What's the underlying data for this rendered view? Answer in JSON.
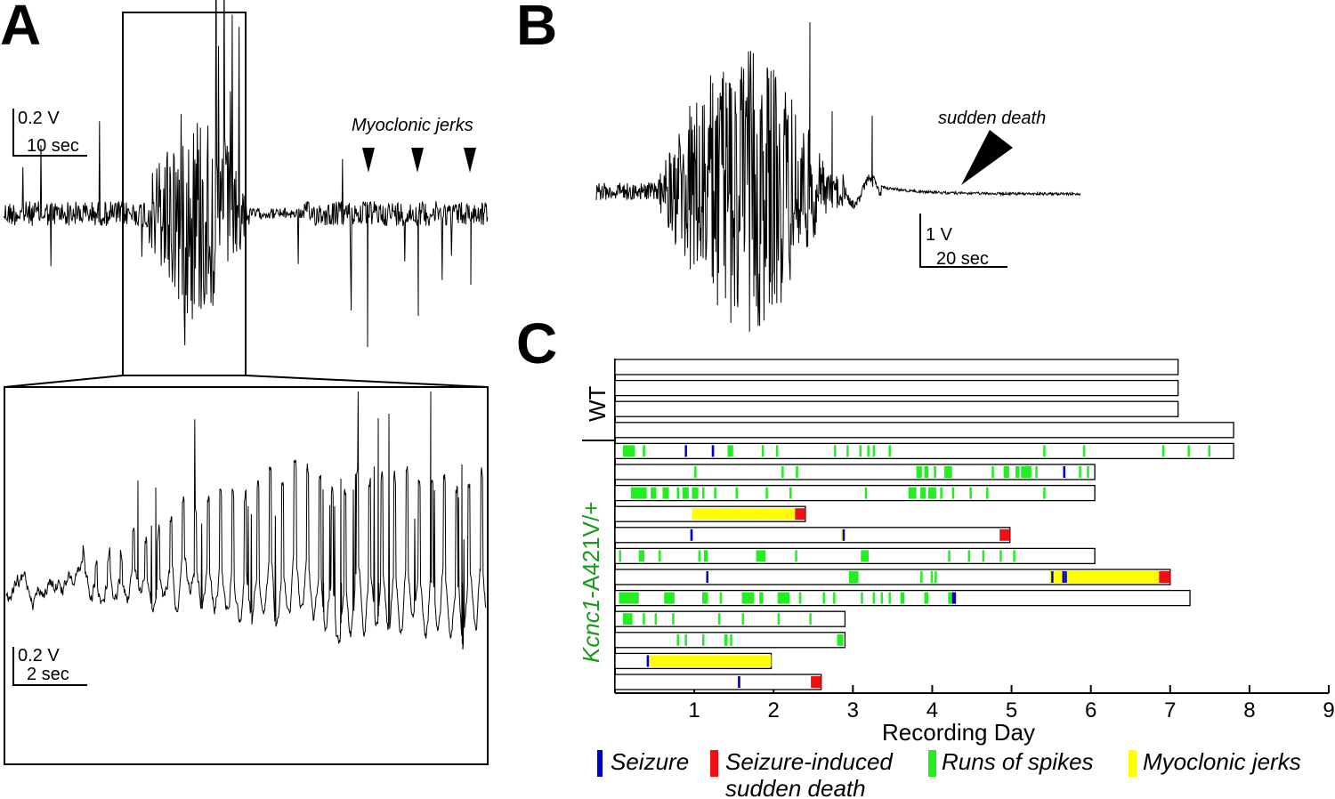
{
  "panels": {
    "a": {
      "letter": "A",
      "scale_top": {
        "voltage": "0.2 V",
        "time": "10 sec"
      },
      "scale_bottom": {
        "voltage": "0.2 V",
        "time": "2 sec"
      },
      "annotation": "Myoclonic jerks"
    },
    "b": {
      "letter": "B",
      "annotation": "sudden death",
      "scale": {
        "voltage": "1 V",
        "time": "20 sec"
      }
    },
    "c": {
      "letter": "C"
    }
  },
  "colors": {
    "seizure": "#0000cc",
    "sudden_death": "#ee1111",
    "spikes": "#22ee22",
    "jerks": "#ffff00",
    "genotype_label": "#1a9a1a"
  },
  "chart_data": {
    "type": "timeline",
    "xlabel": "Recording Day",
    "xlim": [
      0,
      9
    ],
    "xticks": [
      "1",
      "2",
      "3",
      "4",
      "5",
      "6",
      "7",
      "8",
      "9"
    ],
    "groups": [
      {
        "label": "WT",
        "italic_part": "",
        "rows": [
          0,
          1,
          2,
          3
        ]
      },
      {
        "label": "-A421V/+",
        "italic_part": "Kcnc1",
        "rows": [
          4,
          5,
          6,
          7,
          8,
          9,
          10,
          11,
          12,
          13,
          14,
          15
        ]
      }
    ],
    "legend": [
      {
        "key": "seizure",
        "label": "Seizure"
      },
      {
        "key": "sudden_death",
        "label": "Seizure-induced sudden death"
      },
      {
        "key": "spikes",
        "label": "Runs of spikes"
      },
      {
        "key": "jerks",
        "label": "Myoclonic jerks"
      }
    ],
    "rows": [
      {
        "duration": 7.1,
        "events": []
      },
      {
        "duration": 7.1,
        "events": []
      },
      {
        "duration": 7.1,
        "events": []
      },
      {
        "duration": 7.8,
        "events": []
      },
      {
        "duration": 7.8,
        "events": [
          {
            "type": "spikes",
            "start": 0.1,
            "end": 0.25
          },
          {
            "type": "spikes",
            "start": 0.35,
            "end": 0.38
          },
          {
            "type": "seizure",
            "start": 0.88,
            "end": 0.9
          },
          {
            "type": "seizure",
            "start": 1.22,
            "end": 1.25
          },
          {
            "type": "spikes",
            "start": 1.42,
            "end": 1.49
          },
          {
            "type": "spikes",
            "start": 1.85,
            "end": 1.87
          },
          {
            "type": "spikes",
            "start": 2.03,
            "end": 2.05
          },
          {
            "type": "spikes",
            "start": 2.76,
            "end": 2.78
          },
          {
            "type": "spikes",
            "start": 2.92,
            "end": 2.94
          },
          {
            "type": "spikes",
            "start": 3.08,
            "end": 3.1
          },
          {
            "type": "spikes",
            "start": 3.18,
            "end": 3.2
          },
          {
            "type": "spikes",
            "start": 3.25,
            "end": 3.27
          },
          {
            "type": "spikes",
            "start": 3.45,
            "end": 3.47
          },
          {
            "type": "spikes",
            "start": 5.4,
            "end": 5.42
          },
          {
            "type": "spikes",
            "start": 5.9,
            "end": 5.92
          },
          {
            "type": "spikes",
            "start": 6.9,
            "end": 6.92
          },
          {
            "type": "spikes",
            "start": 7.22,
            "end": 7.24
          },
          {
            "type": "spikes",
            "start": 7.48,
            "end": 7.5
          }
        ]
      },
      {
        "duration": 6.05,
        "events": [
          {
            "type": "spikes",
            "start": 1.0,
            "end": 1.02
          },
          {
            "type": "spikes",
            "start": 2.1,
            "end": 2.12
          },
          {
            "type": "spikes",
            "start": 2.28,
            "end": 2.31
          },
          {
            "type": "spikes",
            "start": 3.8,
            "end": 3.87
          },
          {
            "type": "spikes",
            "start": 3.9,
            "end": 3.95
          },
          {
            "type": "spikes",
            "start": 4.02,
            "end": 4.05
          },
          {
            "type": "spikes",
            "start": 4.15,
            "end": 4.25
          },
          {
            "type": "spikes",
            "start": 4.75,
            "end": 4.77
          },
          {
            "type": "spikes",
            "start": 4.9,
            "end": 4.97
          },
          {
            "type": "spikes",
            "start": 5.05,
            "end": 5.1
          },
          {
            "type": "spikes",
            "start": 5.12,
            "end": 5.25
          },
          {
            "type": "spikes",
            "start": 5.3,
            "end": 5.32
          },
          {
            "type": "seizure",
            "start": 5.65,
            "end": 5.67
          },
          {
            "type": "spikes",
            "start": 5.85,
            "end": 5.87
          },
          {
            "type": "spikes",
            "start": 5.95,
            "end": 5.97
          }
        ]
      },
      {
        "duration": 6.05,
        "events": [
          {
            "type": "spikes",
            "start": 0.2,
            "end": 0.4
          },
          {
            "type": "spikes",
            "start": 0.45,
            "end": 0.52
          },
          {
            "type": "spikes",
            "start": 0.6,
            "end": 0.68
          },
          {
            "type": "spikes",
            "start": 0.78,
            "end": 0.8
          },
          {
            "type": "spikes",
            "start": 0.85,
            "end": 0.93
          },
          {
            "type": "spikes",
            "start": 0.97,
            "end": 1.05
          },
          {
            "type": "spikes",
            "start": 1.1,
            "end": 1.12
          },
          {
            "type": "spikes",
            "start": 1.25,
            "end": 1.27
          },
          {
            "type": "spikes",
            "start": 1.52,
            "end": 1.54
          },
          {
            "type": "spikes",
            "start": 1.9,
            "end": 1.92
          },
          {
            "type": "spikes",
            "start": 2.2,
            "end": 2.22
          },
          {
            "type": "spikes",
            "start": 3.15,
            "end": 3.17
          },
          {
            "type": "spikes",
            "start": 3.7,
            "end": 3.8
          },
          {
            "type": "spikes",
            "start": 3.85,
            "end": 3.92
          },
          {
            "type": "spikes",
            "start": 3.95,
            "end": 4.05
          },
          {
            "type": "spikes",
            "start": 4.1,
            "end": 4.12
          },
          {
            "type": "spikes",
            "start": 4.25,
            "end": 4.27
          },
          {
            "type": "spikes",
            "start": 4.47,
            "end": 4.49
          },
          {
            "type": "spikes",
            "start": 4.68,
            "end": 4.7
          },
          {
            "type": "spikes",
            "start": 5.4,
            "end": 5.42
          }
        ]
      },
      {
        "duration": 2.4,
        "events": [
          {
            "type": "jerks",
            "start": 0.97,
            "end": 2.27
          },
          {
            "type": "sudden_death",
            "start": 2.27,
            "end": 2.4
          }
        ]
      },
      {
        "duration": 4.98,
        "events": [
          {
            "type": "seizure",
            "start": 0.95,
            "end": 0.98
          },
          {
            "type": "jerks",
            "start": 2.85,
            "end": 2.87
          },
          {
            "type": "seizure",
            "start": 2.87,
            "end": 2.89
          },
          {
            "type": "sudden_death",
            "start": 4.85,
            "end": 4.98
          }
        ]
      },
      {
        "duration": 6.05,
        "events": [
          {
            "type": "spikes",
            "start": 0.05,
            "end": 0.07
          },
          {
            "type": "spikes",
            "start": 0.3,
            "end": 0.37
          },
          {
            "type": "spikes",
            "start": 0.55,
            "end": 0.57
          },
          {
            "type": "spikes",
            "start": 1.05,
            "end": 1.07
          },
          {
            "type": "spikes",
            "start": 1.12,
            "end": 1.17
          },
          {
            "type": "spikes",
            "start": 1.78,
            "end": 1.9
          },
          {
            "type": "spikes",
            "start": 2.27,
            "end": 2.29
          },
          {
            "type": "spikes",
            "start": 3.1,
            "end": 3.2
          },
          {
            "type": "spikes",
            "start": 4.2,
            "end": 4.22
          },
          {
            "type": "spikes",
            "start": 4.45,
            "end": 4.47
          },
          {
            "type": "spikes",
            "start": 4.63,
            "end": 4.65
          },
          {
            "type": "spikes",
            "start": 4.85,
            "end": 4.87
          },
          {
            "type": "spikes",
            "start": 5.02,
            "end": 5.04
          }
        ]
      },
      {
        "duration": 7.0,
        "events": [
          {
            "type": "seizure",
            "start": 1.15,
            "end": 1.17
          },
          {
            "type": "spikes",
            "start": 2.95,
            "end": 3.07
          },
          {
            "type": "spikes",
            "start": 3.85,
            "end": 3.87
          },
          {
            "type": "spikes",
            "start": 3.98,
            "end": 4.0
          },
          {
            "type": "spikes",
            "start": 4.03,
            "end": 4.05
          },
          {
            "type": "jerks",
            "start": 5.48,
            "end": 6.86
          },
          {
            "type": "seizure",
            "start": 5.5,
            "end": 5.52
          },
          {
            "type": "seizure",
            "start": 5.64,
            "end": 5.66
          },
          {
            "type": "seizure",
            "start": 5.67,
            "end": 5.69
          },
          {
            "type": "sudden_death",
            "start": 6.86,
            "end": 7.0
          }
        ]
      },
      {
        "duration": 7.25,
        "events": [
          {
            "type": "spikes",
            "start": 0.05,
            "end": 0.3
          },
          {
            "type": "spikes",
            "start": 0.62,
            "end": 0.75
          },
          {
            "type": "spikes",
            "start": 1.1,
            "end": 1.17
          },
          {
            "type": "spikes",
            "start": 1.32,
            "end": 1.34
          },
          {
            "type": "spikes",
            "start": 1.6,
            "end": 1.75
          },
          {
            "type": "spikes",
            "start": 1.82,
            "end": 1.87
          },
          {
            "type": "spikes",
            "start": 2.05,
            "end": 2.2
          },
          {
            "type": "spikes",
            "start": 2.32,
            "end": 2.35
          },
          {
            "type": "spikes",
            "start": 2.62,
            "end": 2.64
          },
          {
            "type": "spikes",
            "start": 2.75,
            "end": 2.77
          },
          {
            "type": "spikes",
            "start": 3.1,
            "end": 3.12
          },
          {
            "type": "spikes",
            "start": 3.25,
            "end": 3.27
          },
          {
            "type": "spikes",
            "start": 3.35,
            "end": 3.37
          },
          {
            "type": "spikes",
            "start": 3.45,
            "end": 3.47
          },
          {
            "type": "spikes",
            "start": 3.6,
            "end": 3.65
          },
          {
            "type": "spikes",
            "start": 3.9,
            "end": 3.95
          },
          {
            "type": "spikes",
            "start": 4.2,
            "end": 4.25
          },
          {
            "type": "seizure",
            "start": 4.25,
            "end": 4.3
          }
        ]
      },
      {
        "duration": 2.9,
        "events": [
          {
            "type": "spikes",
            "start": 0.1,
            "end": 0.22
          },
          {
            "type": "spikes",
            "start": 0.35,
            "end": 0.37
          },
          {
            "type": "spikes",
            "start": 0.5,
            "end": 0.52
          },
          {
            "type": "spikes",
            "start": 0.72,
            "end": 0.74
          },
          {
            "type": "spikes",
            "start": 1.3,
            "end": 1.32
          },
          {
            "type": "spikes",
            "start": 1.6,
            "end": 1.62
          },
          {
            "type": "spikes",
            "start": 2.05,
            "end": 2.07
          },
          {
            "type": "spikes",
            "start": 2.45,
            "end": 2.47
          }
        ]
      },
      {
        "duration": 2.9,
        "events": [
          {
            "type": "spikes",
            "start": 0.78,
            "end": 0.8
          },
          {
            "type": "spikes",
            "start": 0.88,
            "end": 0.9
          },
          {
            "type": "spikes",
            "start": 1.1,
            "end": 1.12
          },
          {
            "type": "spikes",
            "start": 1.38,
            "end": 1.42
          },
          {
            "type": "spikes",
            "start": 1.45,
            "end": 1.47
          },
          {
            "type": "spikes",
            "start": 2.8,
            "end": 2.88
          }
        ]
      },
      {
        "duration": 1.97,
        "events": [
          {
            "type": "seizure",
            "start": 0.4,
            "end": 0.42
          },
          {
            "type": "jerks",
            "start": 0.42,
            "end": 1.97
          }
        ]
      },
      {
        "duration": 2.6,
        "events": [
          {
            "type": "seizure",
            "start": 1.55,
            "end": 1.58
          },
          {
            "type": "sudden_death",
            "start": 2.47,
            "end": 2.6
          }
        ]
      }
    ]
  }
}
